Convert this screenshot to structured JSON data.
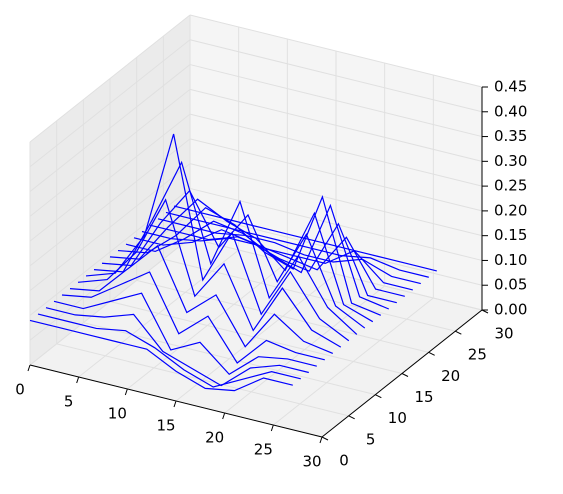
{
  "chart_data": {
    "type": "wireframe",
    "color": "#0000ff",
    "x": [
      0,
      3,
      6,
      9,
      12,
      15,
      18,
      21,
      24,
      27
    ],
    "series": [
      {
        "y": 0,
        "values": [
          0.09,
          0.09,
          0.09,
          0.09,
          0.09,
          0.06,
          0.04,
          0.05,
          0.09,
          0.09
        ]
      },
      {
        "y": 1.5,
        "values": [
          0.09,
          0.09,
          0.09,
          0.1,
          0.08,
          0.05,
          0.03,
          0.06,
          0.09,
          0.09
        ]
      },
      {
        "y": 3,
        "values": [
          0.09,
          0.09,
          0.1,
          0.12,
          0.06,
          0.04,
          0.02,
          0.07,
          0.09,
          0.09
        ]
      },
      {
        "y": 4.5,
        "values": [
          0.09,
          0.09,
          0.12,
          0.15,
          0.05,
          0.08,
          0.03,
          0.08,
          0.09,
          0.09
        ]
      },
      {
        "y": 6,
        "values": [
          0.09,
          0.1,
          0.14,
          0.18,
          0.07,
          0.12,
          0.04,
          0.1,
          0.09,
          0.09
        ]
      },
      {
        "y": 7.5,
        "values": [
          0.09,
          0.1,
          0.16,
          0.22,
          0.1,
          0.15,
          0.06,
          0.14,
          0.1,
          0.09
        ]
      },
      {
        "y": 9,
        "values": [
          0.09,
          0.11,
          0.18,
          0.3,
          0.12,
          0.2,
          0.08,
          0.18,
          0.11,
          0.09
        ]
      },
      {
        "y": 10.5,
        "values": [
          0.09,
          0.11,
          0.2,
          0.42,
          0.14,
          0.25,
          0.1,
          0.2,
          0.12,
          0.09
        ]
      },
      {
        "y": 12,
        "values": [
          0.09,
          0.1,
          0.22,
          0.35,
          0.16,
          0.3,
          0.12,
          0.22,
          0.13,
          0.09
        ]
      },
      {
        "y": 13.5,
        "values": [
          0.09,
          0.1,
          0.2,
          0.28,
          0.18,
          0.26,
          0.14,
          0.25,
          0.12,
          0.09
        ]
      },
      {
        "y": 15,
        "values": [
          0.09,
          0.1,
          0.18,
          0.25,
          0.22,
          0.2,
          0.15,
          0.28,
          0.11,
          0.09
        ]
      },
      {
        "y": 16.5,
        "values": [
          0.09,
          0.1,
          0.15,
          0.22,
          0.2,
          0.16,
          0.14,
          0.3,
          0.1,
          0.09
        ]
      },
      {
        "y": 18,
        "values": [
          0.09,
          0.09,
          0.13,
          0.18,
          0.17,
          0.14,
          0.12,
          0.27,
          0.1,
          0.09
        ]
      },
      {
        "y": 19.5,
        "values": [
          0.09,
          0.09,
          0.11,
          0.15,
          0.14,
          0.12,
          0.11,
          0.22,
          0.09,
          0.09
        ]
      },
      {
        "y": 21,
        "values": [
          0.09,
          0.09,
          0.1,
          0.12,
          0.12,
          0.11,
          0.1,
          0.18,
          0.09,
          0.09
        ]
      },
      {
        "y": 22.5,
        "values": [
          0.09,
          0.09,
          0.09,
          0.11,
          0.1,
          0.1,
          0.1,
          0.14,
          0.09,
          0.09
        ]
      },
      {
        "y": 24,
        "values": [
          0.09,
          0.09,
          0.09,
          0.1,
          0.1,
          0.09,
          0.09,
          0.11,
          0.09,
          0.09
        ]
      },
      {
        "y": 25.5,
        "values": [
          0.09,
          0.09,
          0.09,
          0.09,
          0.09,
          0.09,
          0.09,
          0.1,
          0.09,
          0.09
        ]
      },
      {
        "y": 27,
        "values": [
          0.09,
          0.09,
          0.09,
          0.09,
          0.09,
          0.09,
          0.09,
          0.09,
          0.09,
          0.09
        ]
      }
    ],
    "xlim": [
      0,
      30
    ],
    "ylim": [
      0,
      30
    ],
    "zlim": [
      0,
      0.45
    ],
    "xticks": [
      0,
      5,
      10,
      15,
      20,
      25,
      30
    ],
    "yticks": [
      0,
      5,
      10,
      15,
      20,
      25,
      30
    ],
    "zticks": [
      {
        "value": 0,
        "label": "0.00"
      },
      {
        "value": 0.05,
        "label": "0.05"
      },
      {
        "value": 0.1,
        "label": "0.10"
      },
      {
        "value": 0.15,
        "label": "0.15"
      },
      {
        "value": 0.2,
        "label": "0.20"
      },
      {
        "value": 0.25,
        "label": "0.25"
      },
      {
        "value": 0.3,
        "label": "0.30"
      },
      {
        "value": 0.35,
        "label": "0.35"
      },
      {
        "value": 0.4,
        "label": "0.40"
      },
      {
        "value": 0.45,
        "label": "0.45"
      }
    ],
    "grid": true
  }
}
